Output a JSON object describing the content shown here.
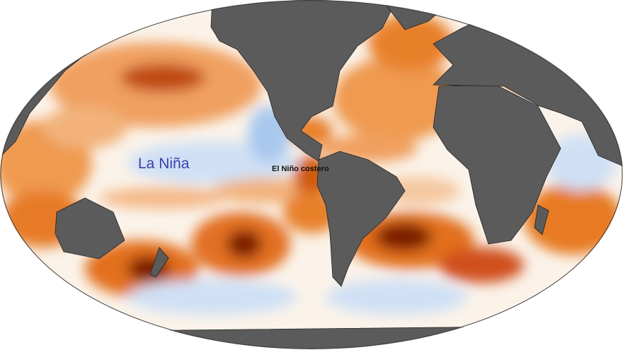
{
  "annotations": {
    "la_nina": "La Niña",
    "nino_costero": "El Niño costero"
  },
  "colors": {
    "land": "#5b5b5b",
    "warm_anomaly": "#e8741a",
    "strong_warm_anomaly": "#7a1a05",
    "cool_anomaly": "#a9c8ee",
    "neutral": "#ffffff"
  },
  "map": {
    "projection": "robinson-like oval",
    "variable": "sea surface temperature anomaly"
  }
}
